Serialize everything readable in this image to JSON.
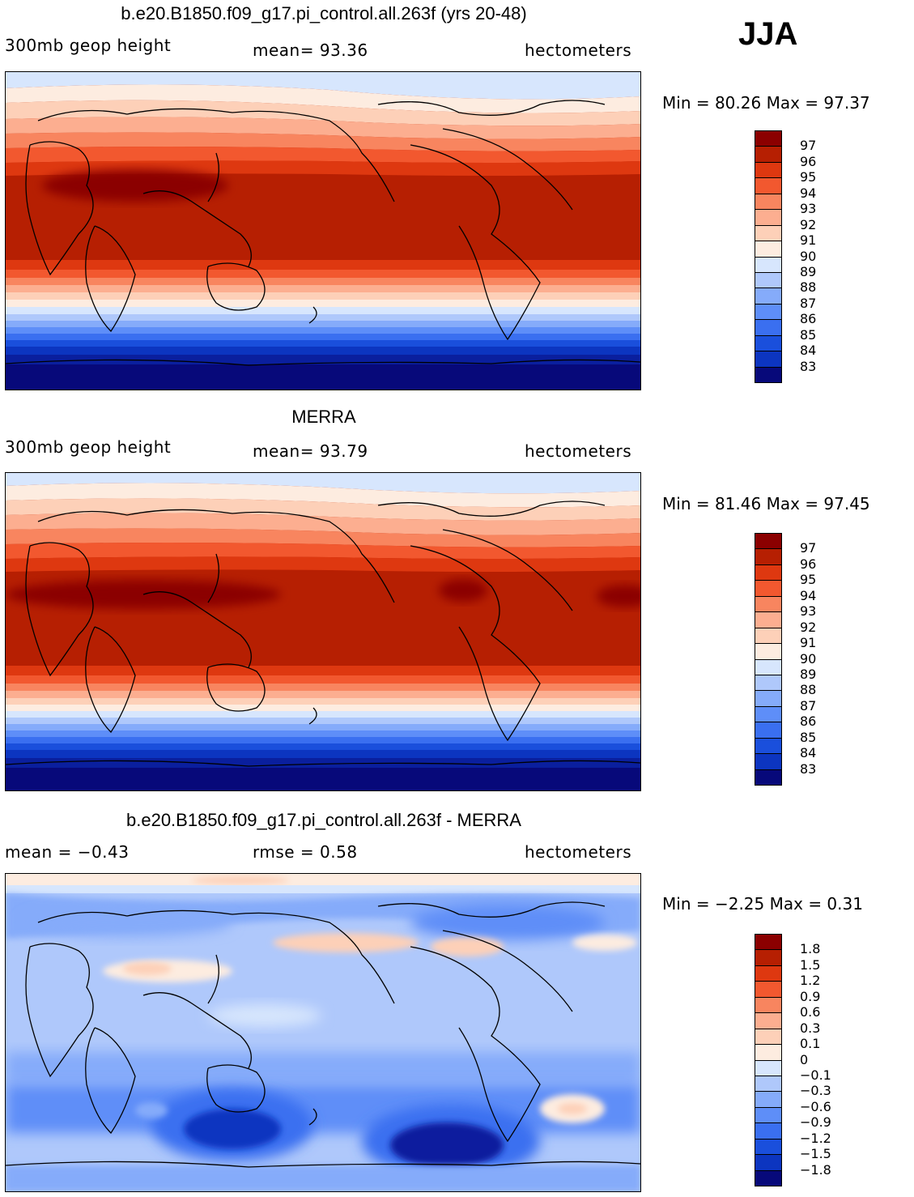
{
  "season": "JJA",
  "panels": [
    {
      "id": "model",
      "title": "b.e20.B1850.f09_g17.pi_control.all.263f (yrs 20-48)",
      "left_label": "300mb geop height",
      "center_label": "mean=   93.36",
      "units": "hectometers",
      "minmax": "Min =   80.26  Max =   97.37",
      "colors": [
        "#07097a",
        "#0a1f9e",
        "#0c35c0",
        "#1a4fdc",
        "#3a6ff0",
        "#5e8ef8",
        "#85abfa",
        "#afc8fb",
        "#d7e6fd",
        "#fdece0",
        "#fdd0b8",
        "#fcae90",
        "#f8855f",
        "#f2582f",
        "#de3810",
        "#b61f02",
        "#8b0000"
      ],
      "labels": [
        "97",
        "96",
        "95",
        "94",
        "93",
        "92",
        "91",
        "90",
        "89",
        "88",
        "87",
        "86",
        "85",
        "84",
        "83"
      ]
    },
    {
      "id": "obs",
      "title": "MERRA",
      "left_label": "300mb geop height",
      "center_label": "mean=   93.79",
      "units": "hectometers",
      "minmax": "Min =   81.46  Max =   97.45",
      "colors": [
        "#07097a",
        "#0a1f9e",
        "#0c35c0",
        "#1a4fdc",
        "#3a6ff0",
        "#5e8ef8",
        "#85abfa",
        "#afc8fb",
        "#d7e6fd",
        "#fdece0",
        "#fdd0b8",
        "#fcae90",
        "#f8855f",
        "#f2582f",
        "#de3810",
        "#b61f02",
        "#8b0000"
      ],
      "labels": [
        "97",
        "96",
        "95",
        "94",
        "93",
        "92",
        "91",
        "90",
        "89",
        "88",
        "87",
        "86",
        "85",
        "84",
        "83"
      ]
    },
    {
      "id": "diff",
      "title": "b.e20.B1850.f09_g17.pi_control.all.263f - MERRA",
      "left_label": "mean =   −0.43",
      "center_label": "rmse =    0.58",
      "units": "hectometers",
      "minmax": "Min =  −2.25  Max =     0.31",
      "colors": [
        "#07097a",
        "#0a1f9e",
        "#0c35c0",
        "#1a4fdc",
        "#3a6ff0",
        "#5e8ef8",
        "#85abfa",
        "#afc8fb",
        "#d7e6fd",
        "#fdece0",
        "#fdd0b8",
        "#fcae90",
        "#f8855f",
        "#f2582f",
        "#de3810",
        "#b61f02",
        "#8b0000"
      ],
      "labels": [
        "1.8",
        "1.5",
        "1.2",
        "0.9",
        "0.6",
        "0.3",
        "0.1",
        "0",
        "−0.1",
        "−0.3",
        "−0.6",
        "−0.9",
        "−1.2",
        "−1.5",
        "−1.8"
      ]
    }
  ]
}
